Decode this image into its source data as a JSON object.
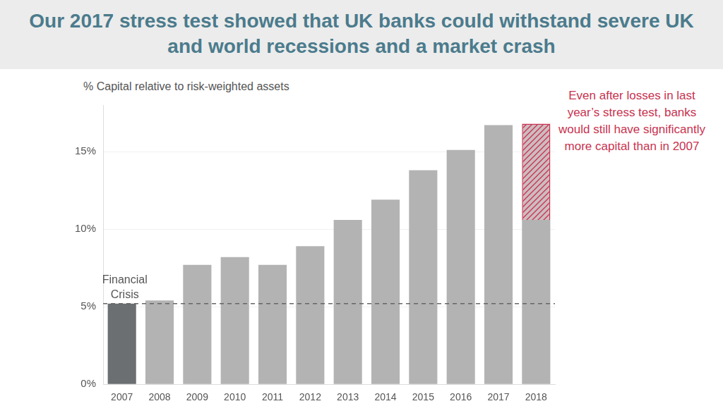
{
  "chart_data": {
    "type": "bar",
    "title": "Our 2017 stress test showed that UK banks could withstand severe UK and world recessions and a market crash",
    "y_label": "% Capital relative to risk-weighted assets",
    "categories": [
      "2007",
      "2008",
      "2009",
      "2010",
      "2011",
      "2012",
      "2013",
      "2014",
      "2015",
      "2016",
      "2017",
      "2018"
    ],
    "stacked": true,
    "series": [
      {
        "color": "#b3b3b3",
        "colors": [
          "#6b6f71",
          "#b3b3b3",
          "#b3b3b3",
          "#b3b3b3",
          "#b3b3b3",
          "#b3b3b3",
          "#b3b3b3",
          "#b3b3b3",
          "#b3b3b3",
          "#b3b3b3",
          "#b3b3b3",
          "#b3b3b3"
        ],
        "values": [
          5.2,
          5.4,
          7.7,
          8.2,
          7.7,
          8.9,
          10.6,
          11.9,
          13.8,
          15.1,
          16.7,
          10.6
        ]
      },
      {
        "color": "#c8324f",
        "values": [
          null,
          null,
          null,
          null,
          null,
          null,
          null,
          null,
          null,
          null,
          null,
          6.2
        ]
      }
    ],
    "ylim": [
      0,
      18
    ],
    "yticks": [
      {
        "value": 0,
        "label": "0%"
      },
      {
        "value": 5,
        "label": "5%"
      },
      {
        "value": 10,
        "label": "10%"
      },
      {
        "value": 15,
        "label": "15%"
      }
    ],
    "grid": true,
    "reference_line": {
      "y": 5.2,
      "text": "Financial Crisis",
      "line_style": "dashed"
    },
    "annotations": [
      {
        "text": "Even after losses in last year’s stress test, banks would still have significantly more capital than in 2007",
        "x": "2018"
      }
    ]
  }
}
